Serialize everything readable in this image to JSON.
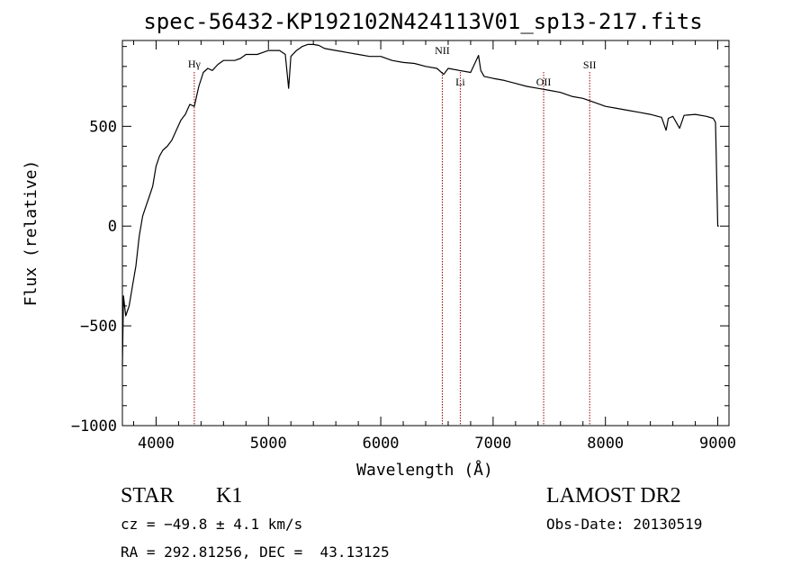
{
  "chart_data": {
    "type": "line",
    "title": "spec-56432-KP192102N424113V01_sp13-217.fits",
    "xlabel": "Wavelength (Å)",
    "ylabel": "Flux (relative)",
    "xlim": [
      3700,
      9100
    ],
    "ylim": [
      -1000,
      930
    ],
    "x_ticks": [
      4000,
      5000,
      6000,
      7000,
      8000,
      9000
    ],
    "y_ticks": [
      -1000,
      -500,
      0,
      500
    ],
    "grid": false,
    "line_color": "#000000",
    "marker_color": "#a00000",
    "line_markers": [
      {
        "label": "Hγ",
        "x": 4340
      },
      {
        "label": "NII",
        "x": 6548
      },
      {
        "label": "Li",
        "x": 6708
      },
      {
        "label": "OII",
        "x": 7450
      },
      {
        "label": "SII",
        "x": 7860
      }
    ],
    "series": [
      {
        "x": [
          3700,
          3710,
          3730,
          3760,
          3790,
          3820,
          3850,
          3880,
          3910,
          3940,
          3970,
          4000,
          4030,
          4060,
          4100,
          4140,
          4180,
          4220,
          4260,
          4300,
          4340,
          4380,
          4420,
          4460,
          4500,
          4550,
          4600,
          4650,
          4700,
          4750,
          4800,
          4850,
          4900,
          4950,
          5000,
          5050,
          5100,
          5150,
          5180,
          5200,
          5250,
          5300,
          5350,
          5400,
          5450,
          5500,
          5600,
          5700,
          5800,
          5900,
          6000,
          6100,
          6200,
          6300,
          6400,
          6500,
          6560,
          6600,
          6700,
          6800,
          6870,
          6890,
          6920,
          7000,
          7100,
          7200,
          7300,
          7400,
          7500,
          7600,
          7700,
          7800,
          7900,
          8000,
          8100,
          8200,
          8300,
          8400,
          8500,
          8540,
          8560,
          8600,
          8660,
          8700,
          8800,
          8900,
          8960,
          8980,
          9000,
          9010
        ],
        "values": [
          -700,
          -350,
          -450,
          -400,
          -300,
          -200,
          -50,
          50,
          100,
          150,
          200,
          300,
          350,
          380,
          400,
          430,
          480,
          530,
          560,
          610,
          600,
          700,
          770,
          790,
          780,
          810,
          830,
          830,
          830,
          840,
          860,
          860,
          860,
          870,
          880,
          880,
          880,
          860,
          690,
          850,
          880,
          900,
          910,
          910,
          905,
          890,
          880,
          870,
          860,
          850,
          850,
          830,
          820,
          815,
          800,
          790,
          760,
          790,
          780,
          770,
          855,
          780,
          750,
          740,
          730,
          715,
          700,
          690,
          680,
          670,
          650,
          640,
          620,
          600,
          590,
          580,
          570,
          560,
          545,
          480,
          540,
          550,
          490,
          555,
          560,
          550,
          540,
          520,
          0,
          0
        ]
      }
    ]
  },
  "footer": {
    "object_class": "STAR",
    "subclass": "K1",
    "survey": "LAMOST DR2",
    "velocity": "cz = −49.8 ± 4.1 km/s",
    "obs_date": "Obs-Date: 20130519",
    "coords": "RA = 292.81256, DEC =  43.13125"
  }
}
